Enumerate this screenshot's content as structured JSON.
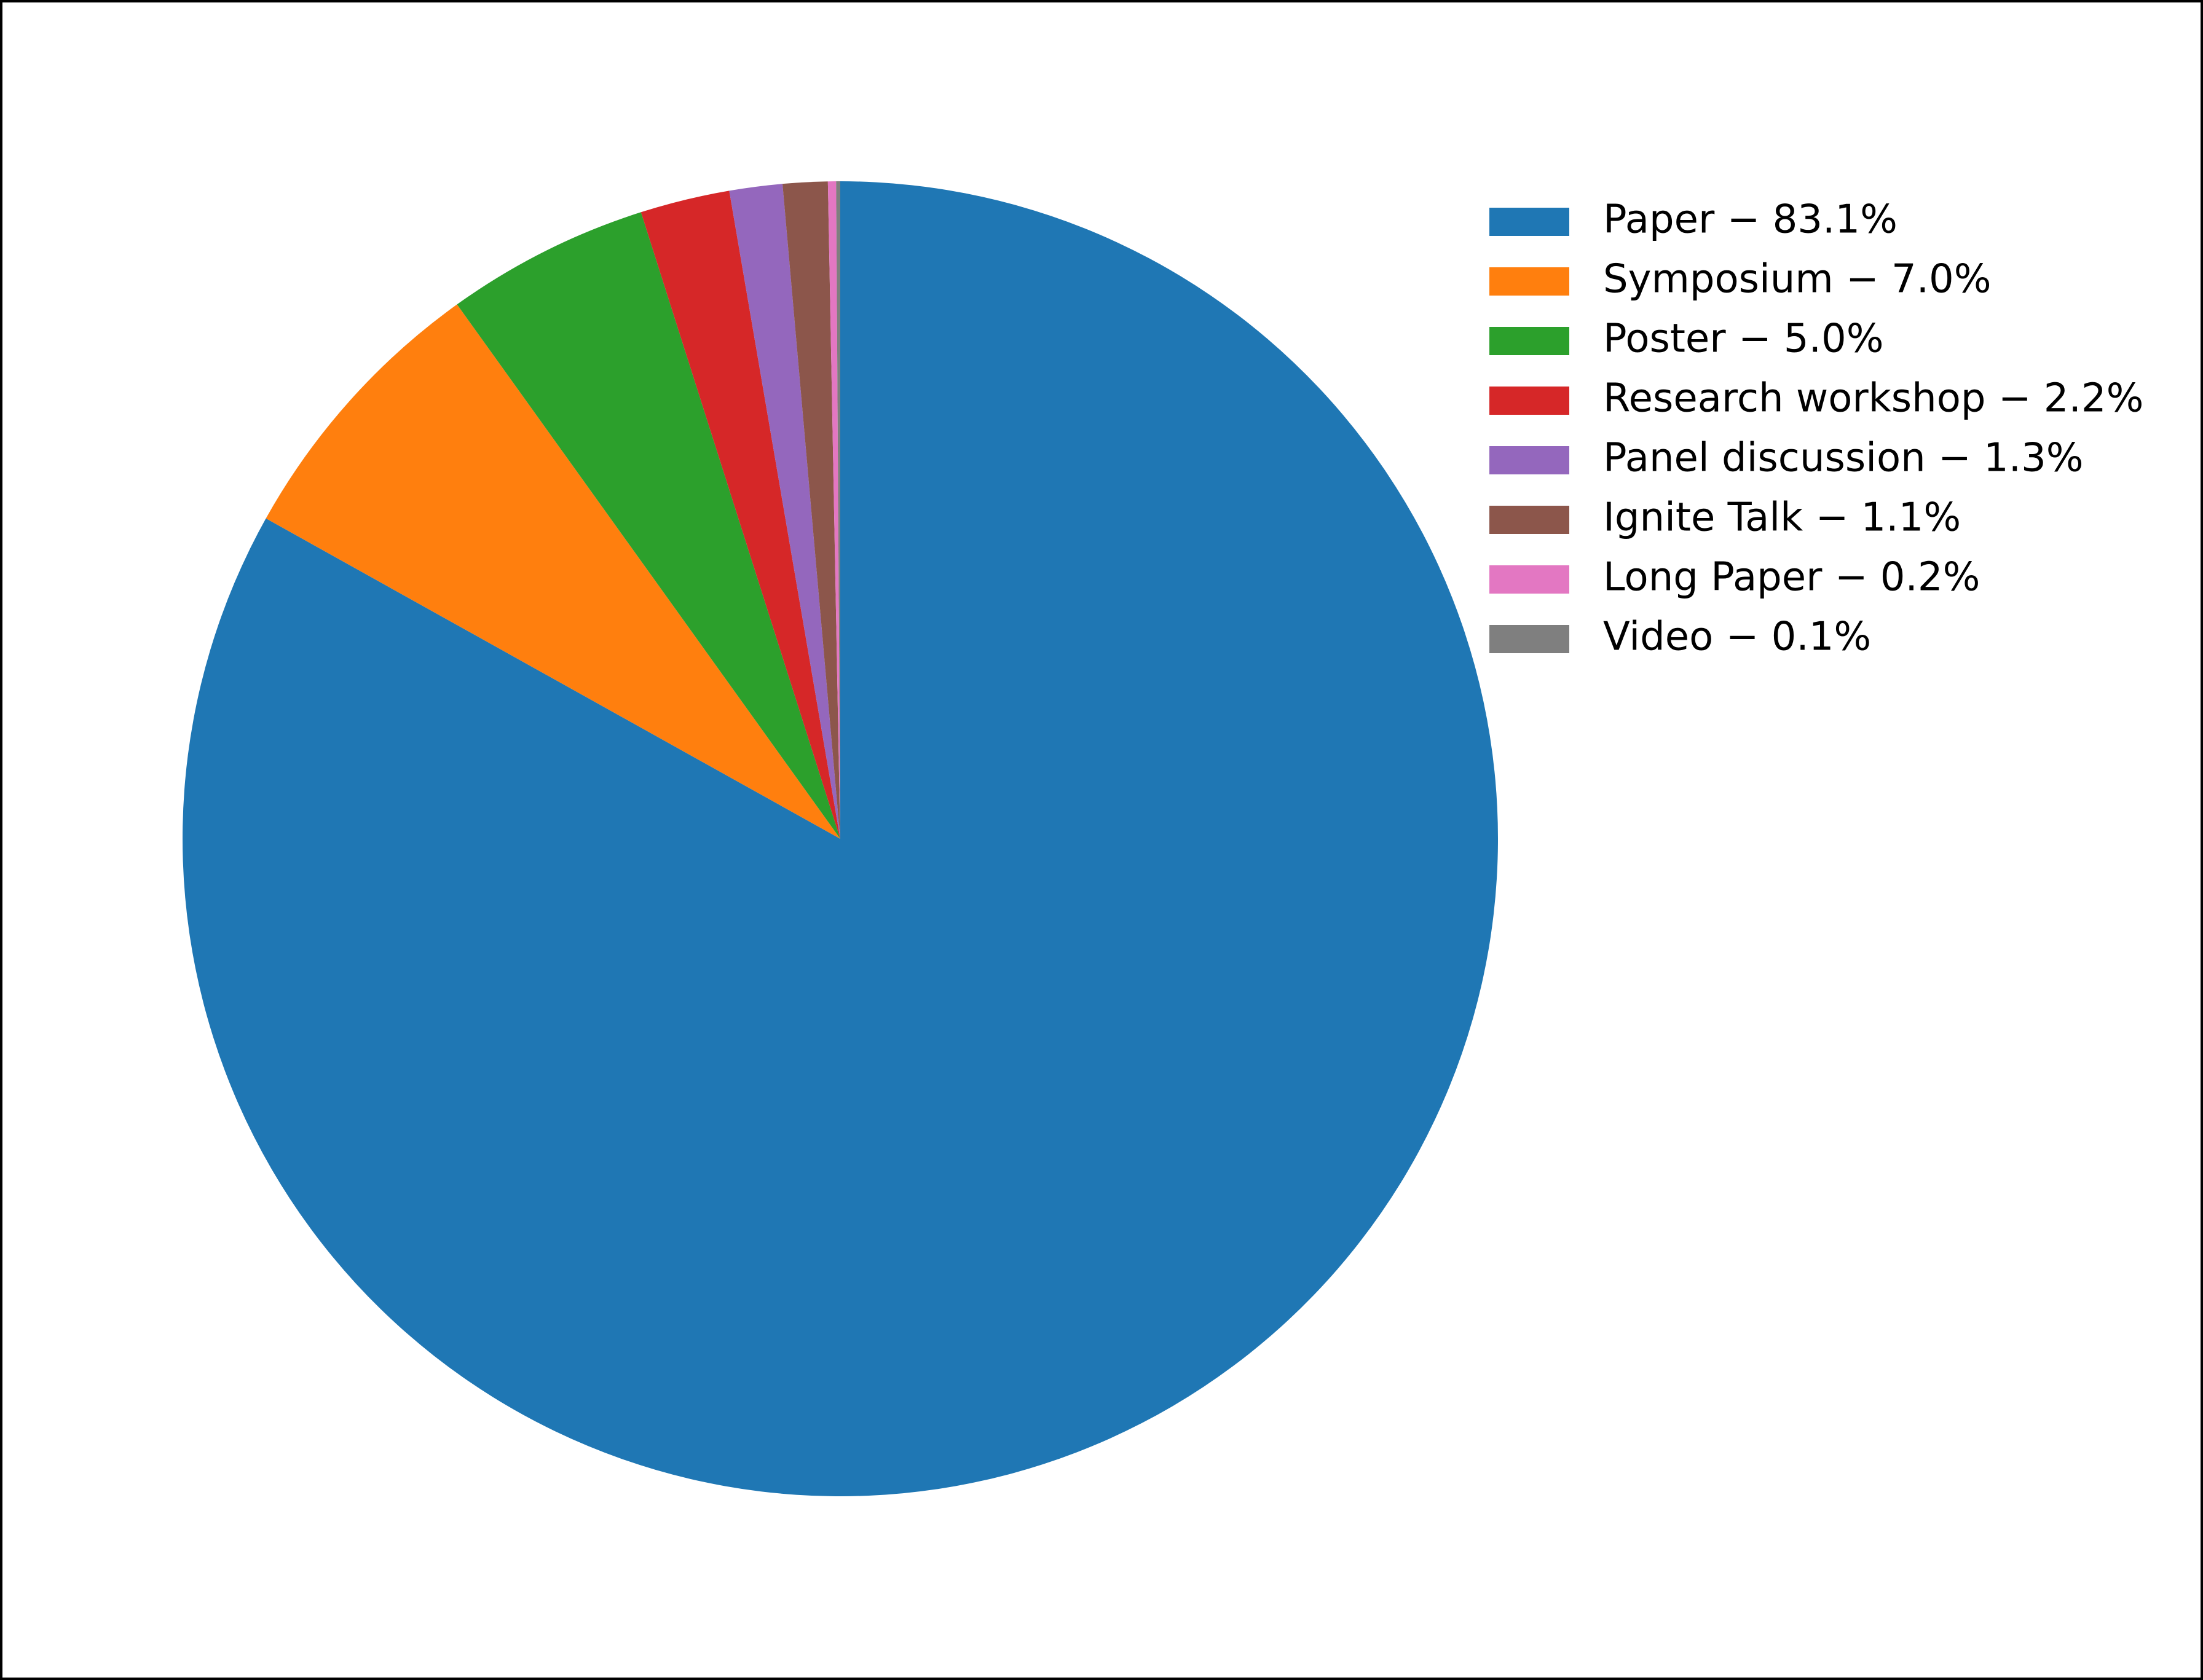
{
  "chart_data": {
    "type": "pie",
    "categories": [
      "Paper − 83.1%",
      "Symposium − 7.0%",
      "Poster − 5.0%",
      "Research workshop − 2.2%",
      "Panel discussion − 1.3%",
      "Ignite Talk − 1.1%",
      "Long Paper − 0.2%",
      "Video − 0.1%"
    ],
    "values": [
      83.1,
      7.0,
      5.0,
      2.2,
      1.3,
      1.1,
      0.2,
      0.1
    ],
    "colors": [
      "#1f77b4",
      "#ff7f0e",
      "#2ca02c",
      "#d62728",
      "#9467bd",
      "#8c564b",
      "#e377c2",
      "#7f7f7f"
    ],
    "legend": "upper right"
  }
}
